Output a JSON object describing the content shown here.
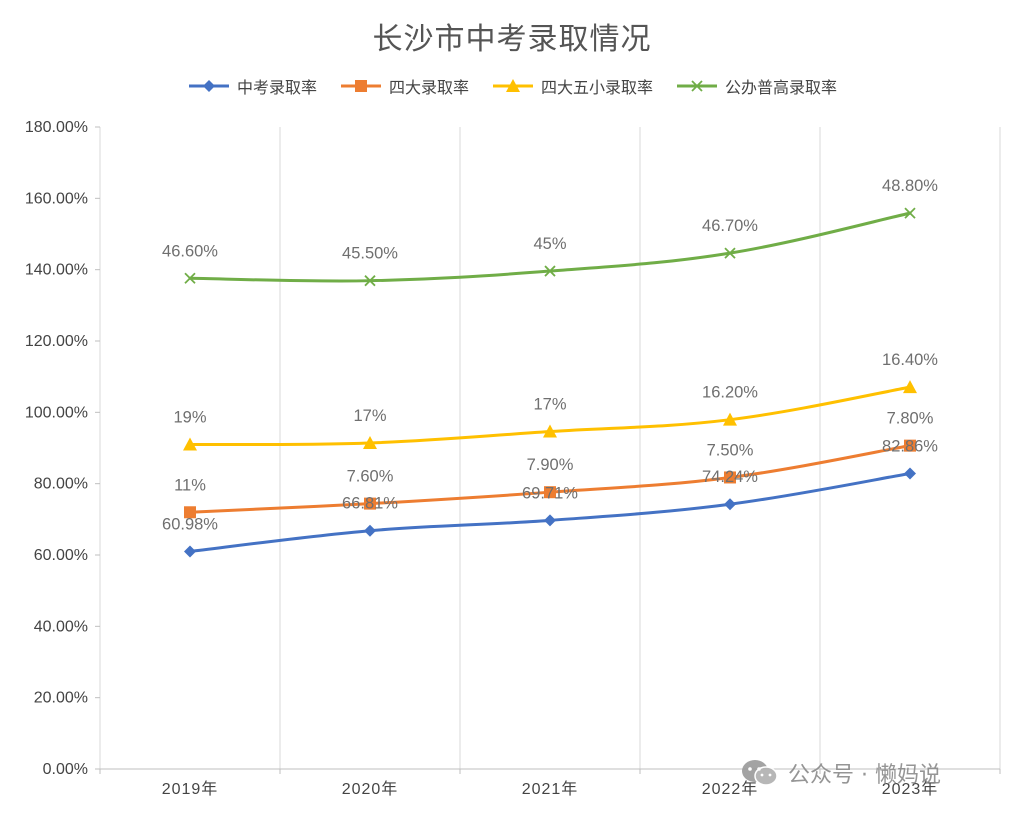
{
  "chart_data": {
    "type": "line",
    "title": "长沙市中考录取情况",
    "categories": [
      "2019年",
      "2020年",
      "2021年",
      "2022年",
      "2023年"
    ],
    "ylim": [
      0,
      180
    ],
    "y_ticks": [
      "0.00%",
      "20.00%",
      "40.00%",
      "60.00%",
      "80.00%",
      "100.00%",
      "120.00%",
      "140.00%",
      "160.00%",
      "180.00%"
    ],
    "grid": "vertical",
    "legend_position": "top",
    "stacked": true,
    "series": [
      {
        "name": "中考录取率",
        "color": "#4472C4",
        "marker": "diamond",
        "values": [
          60.98,
          66.81,
          69.71,
          74.24,
          82.86
        ],
        "labels": [
          "60.98%",
          "66.81%",
          "69.71%",
          "74.24%",
          "82.86%"
        ]
      },
      {
        "name": "四大录取率",
        "color": "#ED7D31",
        "marker": "square",
        "values": [
          11,
          7.6,
          7.9,
          7.5,
          7.8
        ],
        "labels": [
          "11%",
          "7.60%",
          "7.90%",
          "7.50%",
          "7.80%"
        ]
      },
      {
        "name": "四大五小录取率",
        "color": "#FFC000",
        "marker": "triangle",
        "values": [
          19,
          17,
          17,
          16.2,
          16.4
        ],
        "labels": [
          "19%",
          "17%",
          "17%",
          "16.20%",
          "16.40%"
        ]
      },
      {
        "name": "公办普高录取率",
        "color": "#70AD47",
        "marker": "x",
        "values": [
          46.6,
          45.5,
          45,
          46.7,
          48.8
        ],
        "labels": [
          "46.60%",
          "45.50%",
          "45%",
          "46.70%",
          "48.80%"
        ]
      }
    ]
  },
  "watermark": {
    "icon": "wechat-icon",
    "text": "公众号 · 懒妈说"
  }
}
